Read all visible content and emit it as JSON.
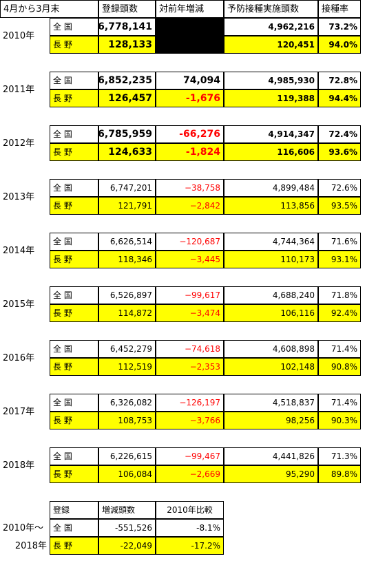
{
  "header": {
    "period": "4月から3月末",
    "registered": "登録頭数",
    "change": "対前年増減",
    "vaccinated": "予防接種実施頭数",
    "rate": "接種率"
  },
  "labels": {
    "national": "全 国",
    "nagano": "長 野"
  },
  "years": [
    {
      "year": "2010年",
      "national": {
        "registered": "6,778,141",
        "change": "",
        "vaccinated": "4,962,216",
        "rate": "73.2%"
      },
      "nagano": {
        "registered": "128,133",
        "change": "",
        "vaccinated": "120,451",
        "rate": "94.0%"
      }
    },
    {
      "year": "2011年",
      "national": {
        "registered": "6,852,235",
        "change": "74,094",
        "vaccinated": "4,985,930",
        "rate": "72.8%"
      },
      "nagano": {
        "registered": "126,457",
        "change": "-1,676",
        "vaccinated": "119,388",
        "rate": "94.4%"
      }
    },
    {
      "year": "2012年",
      "national": {
        "registered": "6,785,959",
        "change": "-66,276",
        "vaccinated": "4,914,347",
        "rate": "72.4%"
      },
      "nagano": {
        "registered": "124,633",
        "change": "-1,824",
        "vaccinated": "116,606",
        "rate": "93.6%"
      }
    },
    {
      "year": "2013年",
      "national": {
        "registered": "6,747,201",
        "change": "−38,758",
        "vaccinated": "4,899,484",
        "rate": "72.6%"
      },
      "nagano": {
        "registered": "121,791",
        "change": "−2,842",
        "vaccinated": "113,856",
        "rate": "93.5%"
      }
    },
    {
      "year": "2014年",
      "national": {
        "registered": "6,626,514",
        "change": "−120,687",
        "vaccinated": "4,744,364",
        "rate": "71.6%"
      },
      "nagano": {
        "registered": "118,346",
        "change": "−3,445",
        "vaccinated": "110,173",
        "rate": "93.1%"
      }
    },
    {
      "year": "2015年",
      "national": {
        "registered": "6,526,897",
        "change": "−99,617",
        "vaccinated": "4,688,240",
        "rate": "71.8%"
      },
      "nagano": {
        "registered": "114,872",
        "change": "−3,474",
        "vaccinated": "106,116",
        "rate": "92.4%"
      }
    },
    {
      "year": "2016年",
      "national": {
        "registered": "6,452,279",
        "change": "−74,618",
        "vaccinated": "4,608,898",
        "rate": "71.4%"
      },
      "nagano": {
        "registered": "112,519",
        "change": "−2,353",
        "vaccinated": "102,148",
        "rate": "90.8%"
      }
    },
    {
      "year": "2017年",
      "national": {
        "registered": "6,326,082",
        "change": "−126,197",
        "vaccinated": "4,518,837",
        "rate": "71.4%"
      },
      "nagano": {
        "registered": "108,753",
        "change": "−3,766",
        "vaccinated": "98,256",
        "rate": "90.3%"
      }
    },
    {
      "year": "2018年",
      "national": {
        "registered": "6,226,615",
        "change": "−99,467",
        "vaccinated": "4,441,826",
        "rate": "71.3%"
      },
      "nagano": {
        "registered": "106,084",
        "change": "−2,669",
        "vaccinated": "95,290",
        "rate": "89.8%"
      }
    }
  ],
  "summary": {
    "header": {
      "label": "登録",
      "change": "増減頭数",
      "compare": "2010年比較"
    },
    "period_line1": "2010年～",
    "period_line2": "2018年",
    "national": {
      "change": "-551,526",
      "compare": "-8.1%"
    },
    "nagano": {
      "change": "-22,049",
      "compare": "-17.2%"
    }
  }
}
